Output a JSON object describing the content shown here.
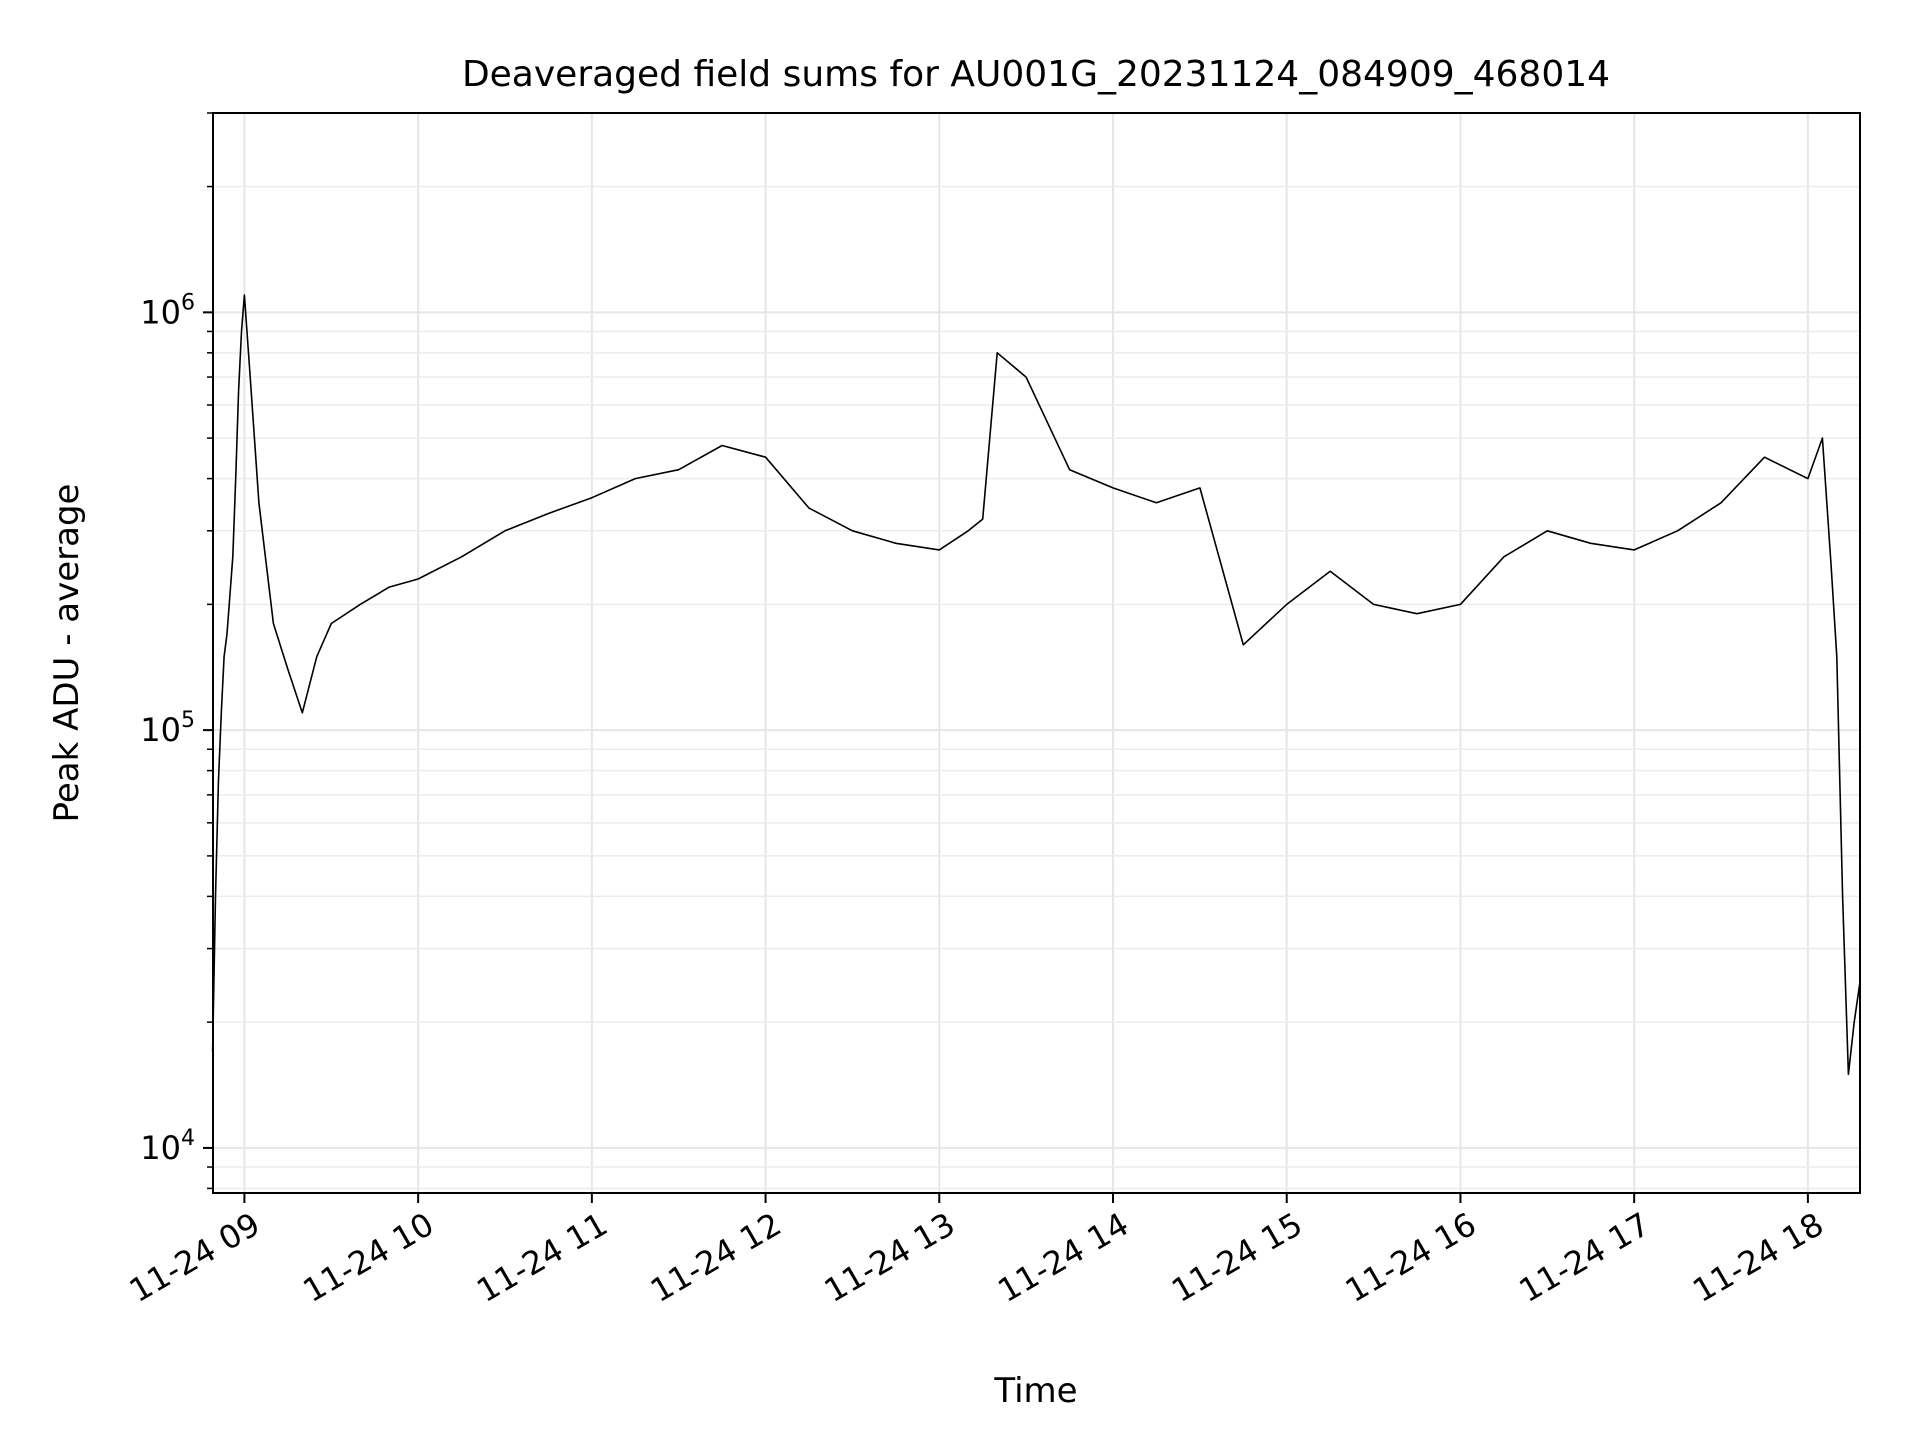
{
  "chart_data": {
    "type": "line",
    "title": "Deaveraged field sums for AU001G_20231124_084909_468014",
    "xlabel": "Time",
    "ylabel": "Peak ADU - average",
    "x_axis_type": "datetime",
    "y_scale": "log",
    "xlim": [
      "2023-11-24 08:49:09",
      "2023-11-24 18:18:00"
    ],
    "ylim": [
      7800,
      3000000
    ],
    "x_ticks": [
      {
        "value": "2023-11-24 09:00",
        "label": "11-24 09"
      },
      {
        "value": "2023-11-24 10:00",
        "label": "11-24 10"
      },
      {
        "value": "2023-11-24 11:00",
        "label": "11-24 11"
      },
      {
        "value": "2023-11-24 12:00",
        "label": "11-24 12"
      },
      {
        "value": "2023-11-24 13:00",
        "label": "11-24 13"
      },
      {
        "value": "2023-11-24 14:00",
        "label": "11-24 14"
      },
      {
        "value": "2023-11-24 15:00",
        "label": "11-24 15"
      },
      {
        "value": "2023-11-24 16:00",
        "label": "11-24 16"
      },
      {
        "value": "2023-11-24 17:00",
        "label": "11-24 17"
      },
      {
        "value": "2023-11-24 18:00",
        "label": "11-24 18"
      }
    ],
    "y_ticks": [
      {
        "value": 10000,
        "base": "10",
        "exp": "4"
      },
      {
        "value": 100000,
        "base": "10",
        "exp": "5"
      },
      {
        "value": 1000000,
        "base": "10",
        "exp": "6"
      }
    ],
    "grid": true,
    "series": [
      {
        "color": "#000000",
        "points": [
          [
            "2023-11-24 08:49",
            17000
          ],
          [
            "2023-11-24 08:50",
            40000
          ],
          [
            "2023-11-24 08:51",
            75000
          ],
          [
            "2023-11-24 08:52",
            110000
          ],
          [
            "2023-11-24 08:53",
            150000
          ],
          [
            "2023-11-24 08:54",
            170000
          ],
          [
            "2023-11-24 08:55",
            210000
          ],
          [
            "2023-11-24 08:56",
            260000
          ],
          [
            "2023-11-24 08:57",
            400000
          ],
          [
            "2023-11-24 08:58",
            650000
          ],
          [
            "2023-11-24 08:59",
            900000
          ],
          [
            "2023-11-24 09:00",
            1100000
          ],
          [
            "2023-11-24 09:02",
            700000
          ],
          [
            "2023-11-24 09:05",
            350000
          ],
          [
            "2023-11-24 09:10",
            180000
          ],
          [
            "2023-11-24 09:15",
            140000
          ],
          [
            "2023-11-24 09:20",
            110000
          ],
          [
            "2023-11-24 09:25",
            150000
          ],
          [
            "2023-11-24 09:30",
            180000
          ],
          [
            "2023-11-24 09:40",
            200000
          ],
          [
            "2023-11-24 09:50",
            220000
          ],
          [
            "2023-11-24 10:00",
            230000
          ],
          [
            "2023-11-24 10:15",
            260000
          ],
          [
            "2023-11-24 10:30",
            300000
          ],
          [
            "2023-11-24 10:45",
            330000
          ],
          [
            "2023-11-24 11:00",
            360000
          ],
          [
            "2023-11-24 11:15",
            400000
          ],
          [
            "2023-11-24 11:30",
            420000
          ],
          [
            "2023-11-24 11:45",
            480000
          ],
          [
            "2023-11-24 12:00",
            450000
          ],
          [
            "2023-11-24 12:15",
            340000
          ],
          [
            "2023-11-24 12:30",
            300000
          ],
          [
            "2023-11-24 12:45",
            280000
          ],
          [
            "2023-11-24 13:00",
            270000
          ],
          [
            "2023-11-24 13:10",
            300000
          ],
          [
            "2023-11-24 13:15",
            320000
          ],
          [
            "2023-11-24 13:20",
            800000
          ],
          [
            "2023-11-24 13:30",
            700000
          ],
          [
            "2023-11-24 13:45",
            420000
          ],
          [
            "2023-11-24 14:00",
            380000
          ],
          [
            "2023-11-24 14:15",
            350000
          ],
          [
            "2023-11-24 14:30",
            380000
          ],
          [
            "2023-11-24 14:45",
            160000
          ],
          [
            "2023-11-24 15:00",
            200000
          ],
          [
            "2023-11-24 15:15",
            240000
          ],
          [
            "2023-11-24 15:30",
            200000
          ],
          [
            "2023-11-24 15:45",
            190000
          ],
          [
            "2023-11-24 16:00",
            200000
          ],
          [
            "2023-11-24 16:15",
            260000
          ],
          [
            "2023-11-24 16:30",
            300000
          ],
          [
            "2023-11-24 16:45",
            280000
          ],
          [
            "2023-11-24 17:00",
            270000
          ],
          [
            "2023-11-24 17:15",
            300000
          ],
          [
            "2023-11-24 17:30",
            350000
          ],
          [
            "2023-11-24 17:45",
            450000
          ],
          [
            "2023-11-24 18:00",
            400000
          ],
          [
            "2023-11-24 18:05",
            500000
          ],
          [
            "2023-11-24 18:08",
            250000
          ],
          [
            "2023-11-24 18:10",
            150000
          ],
          [
            "2023-11-24 18:12",
            40000
          ],
          [
            "2023-11-24 18:14",
            15000
          ],
          [
            "2023-11-24 18:16",
            20000
          ],
          [
            "2023-11-24 18:18",
            25000
          ]
        ]
      }
    ]
  }
}
